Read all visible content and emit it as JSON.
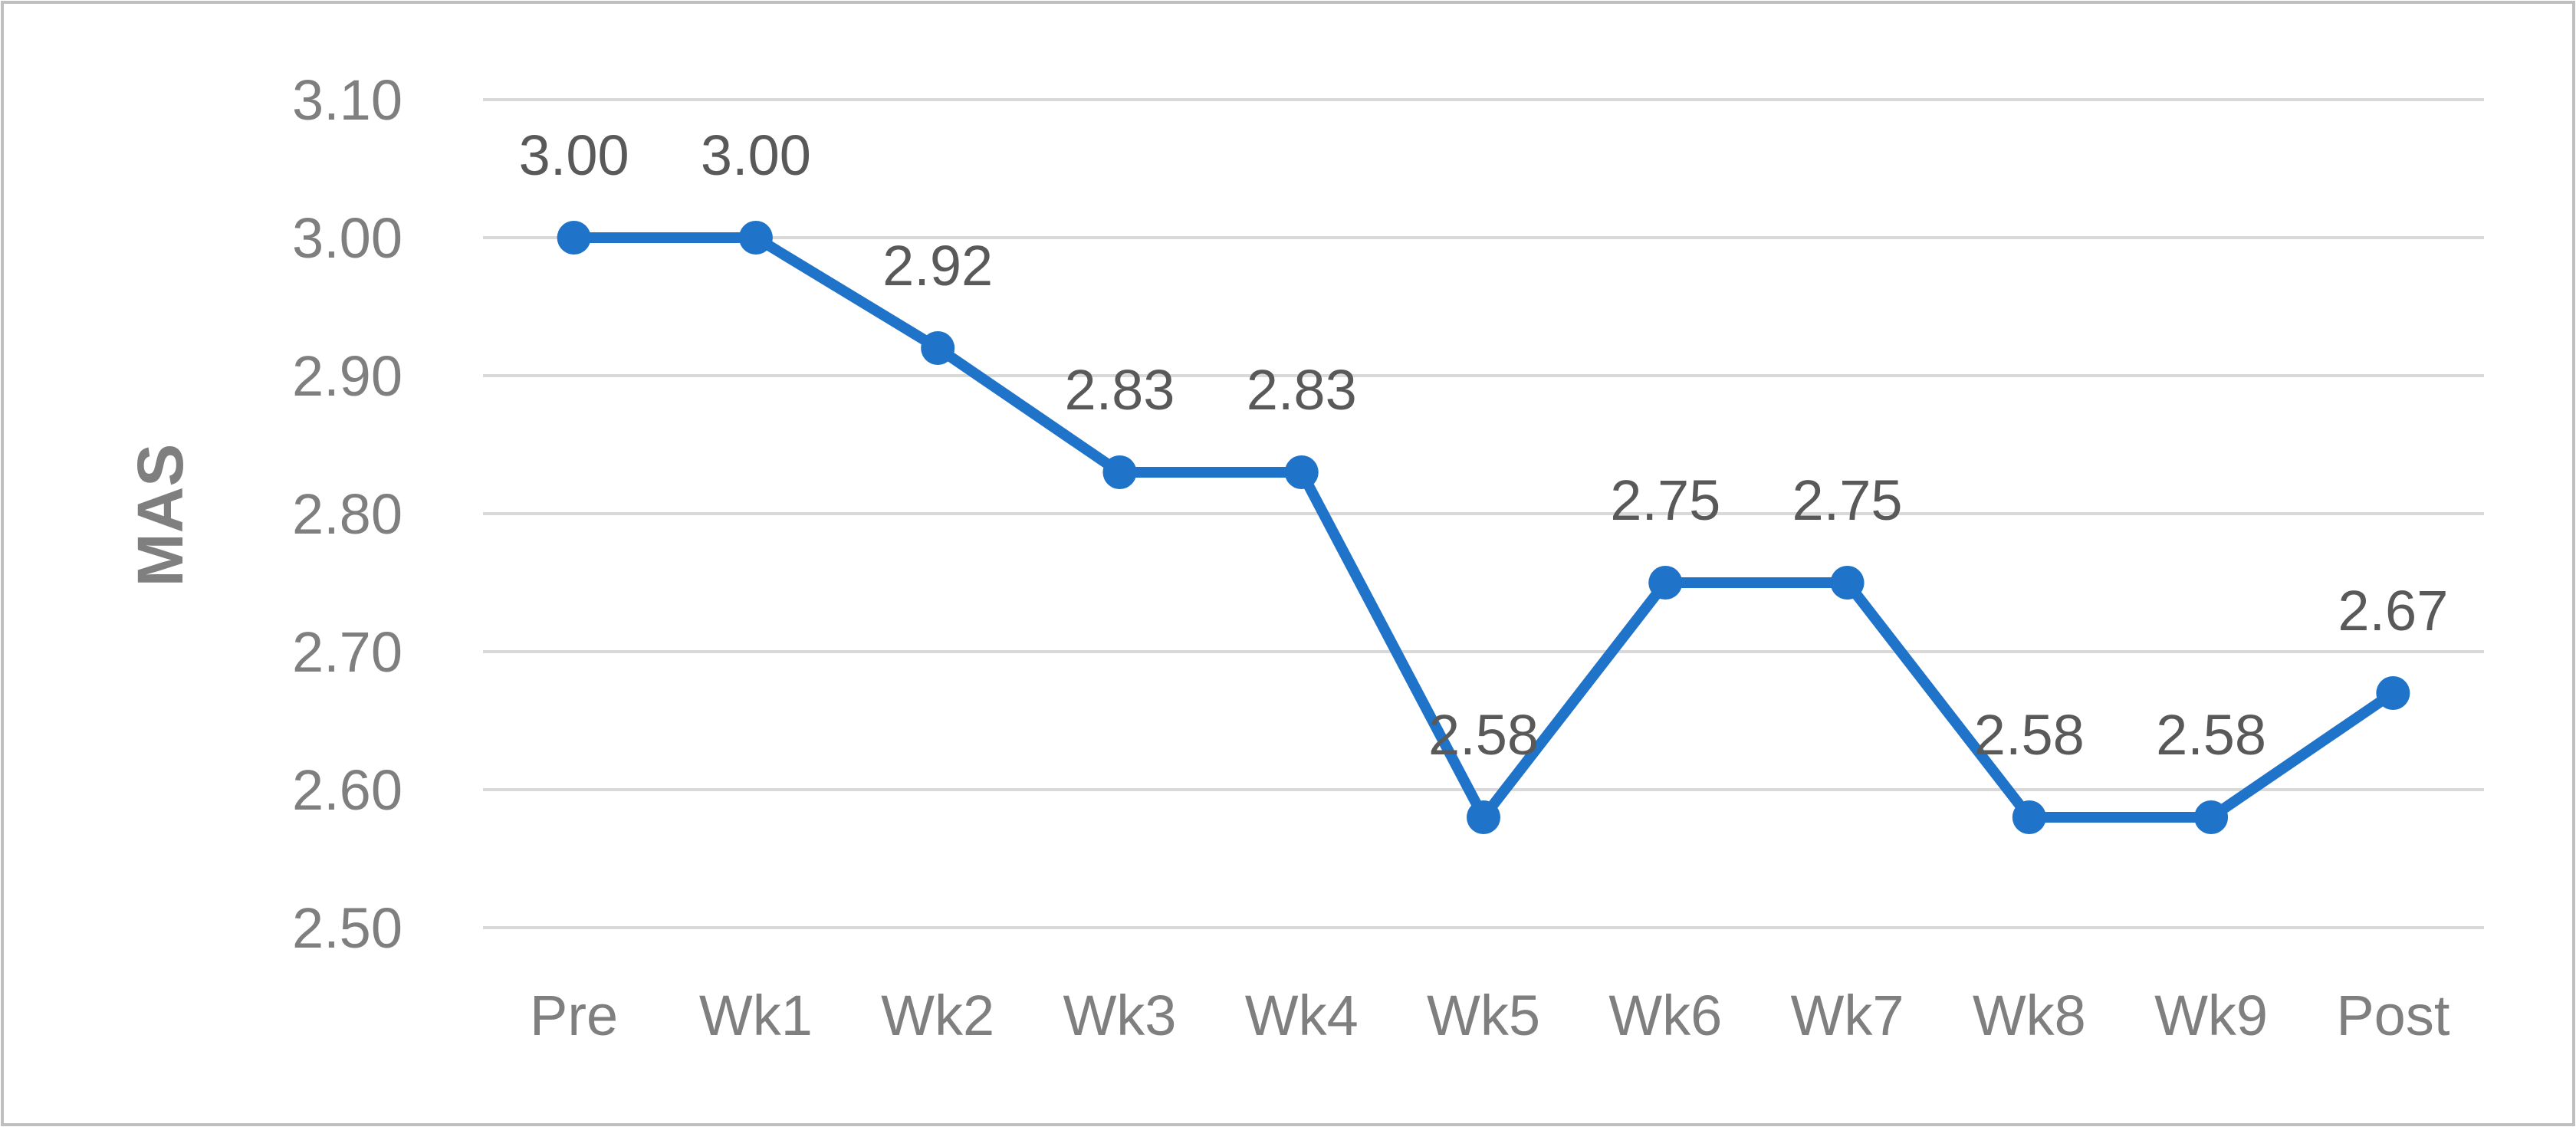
{
  "colors": {
    "series": "#1F73C8",
    "grid": "#D9D9D9",
    "tick_text": "#7F7F7F",
    "data_label_text": "#595959",
    "border": "#BFBFBF"
  },
  "chart_data": {
    "type": "line",
    "title": "",
    "xlabel": "",
    "ylabel": "MAS",
    "categories": [
      "Pre",
      "Wk1",
      "Wk2",
      "Wk3",
      "Wk4",
      "Wk5",
      "Wk6",
      "Wk7",
      "Wk8",
      "Wk9",
      "Post"
    ],
    "series": [
      {
        "values": [
          3.0,
          3.0,
          2.92,
          2.83,
          2.83,
          2.58,
          2.75,
          2.75,
          2.58,
          2.58,
          2.67
        ],
        "data_labels": [
          "3.00",
          "3.00",
          "2.92",
          "2.83",
          "2.83",
          "2.58",
          "2.75",
          "2.75",
          "2.58",
          "2.58",
          "2.67"
        ]
      }
    ],
    "ylim": [
      2.5,
      3.1
    ],
    "yticks": [
      2.5,
      2.6,
      2.7,
      2.8,
      2.9,
      3.0,
      3.1
    ],
    "ytick_labels": [
      "2.50",
      "2.60",
      "2.70",
      "2.80",
      "2.90",
      "3.00",
      "3.10"
    ],
    "grid": true,
    "legend": "none",
    "markers": true
  }
}
